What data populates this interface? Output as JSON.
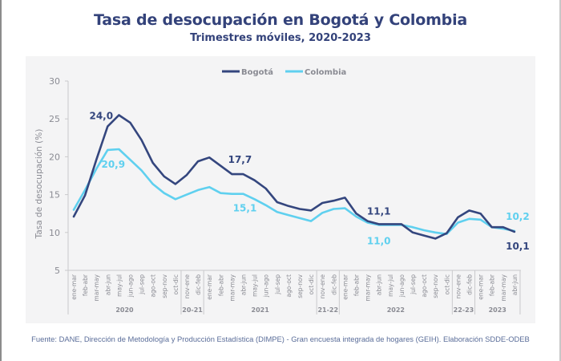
{
  "title": "Tasa de desocupación en Bogotá y Colombia",
  "subtitle": "Trimestres móviles, 2020-2023",
  "footer": "Fuente: DANE, Dirección de Metodología y Producción Estadística (DIMPE) - Gran encuesta integrada de hogares (GEIH). Elaboración SDDE-ODEB",
  "chart_data": {
    "type": "line",
    "title": "Tasa de desocupación en Bogotá y Colombia",
    "subtitle": "Trimestres móviles, 2020-2023",
    "xlabel": "",
    "ylabel": "Tasa de desocupación (%)",
    "ylim": [
      5,
      30
    ],
    "yticks": [
      5,
      10,
      15,
      20,
      25,
      30
    ],
    "grid": false,
    "legend_position": "top-center",
    "categories": [
      "ene-mar",
      "feb-abr",
      "mar-may",
      "abr-jun",
      "may-jul",
      "jun-ago",
      "jul-sep",
      "ago-oct",
      "sep-nov",
      "oct-dic",
      "nov-ene",
      "dic-feb",
      "ene-mar",
      "feb-abr",
      "mar-may",
      "abr-jun",
      "may-jul",
      "jun-ago",
      "jul-sep",
      "ago-oct",
      "sep-nov",
      "oct-dic",
      "nov-ene",
      "dic-feb",
      "ene-mar",
      "feb-abr",
      "mar-may",
      "abr-jun",
      "may-jul",
      "jun-ago",
      "jul-sep",
      "ago-oct",
      "sep-nov",
      "oct-dic",
      "nov-ene",
      "dic-feb",
      "ene-mar",
      "feb-abr",
      "mar-may",
      "abr-jun"
    ],
    "groups": [
      {
        "label": "2020",
        "count": 10
      },
      {
        "label": "20-21",
        "count": 2
      },
      {
        "label": "2021",
        "count": 10
      },
      {
        "label": "21-22",
        "count": 2
      },
      {
        "label": "2022",
        "count": 10
      },
      {
        "label": "22-23",
        "count": 2
      },
      {
        "label": "2023",
        "count": 4
      }
    ],
    "series": [
      {
        "name": "Bogotá",
        "color": "#34467e",
        "values": [
          12.1,
          14.9,
          19.6,
          24.0,
          25.5,
          24.5,
          22.2,
          19.2,
          17.4,
          16.4,
          17.6,
          19.4,
          19.9,
          18.8,
          17.7,
          17.7,
          16.9,
          15.8,
          14.0,
          13.5,
          13.1,
          12.9,
          13.9,
          14.2,
          14.6,
          12.5,
          11.5,
          11.1,
          11.1,
          11.1,
          10.0,
          9.6,
          9.2,
          9.9,
          12.0,
          12.9,
          12.5,
          10.7,
          10.7,
          10.1
        ]
      },
      {
        "name": "Colombia",
        "color": "#5fd0ef",
        "values": [
          13.0,
          15.6,
          18.4,
          20.9,
          21.0,
          19.6,
          18.2,
          16.4,
          15.2,
          14.4,
          15.0,
          15.6,
          16.0,
          15.2,
          15.1,
          15.1,
          14.4,
          13.6,
          12.7,
          12.3,
          11.9,
          11.5,
          12.6,
          13.1,
          13.2,
          12.1,
          11.3,
          11.0,
          11.0,
          11.0,
          10.7,
          10.3,
          10.0,
          9.8,
          11.3,
          11.8,
          11.7,
          10.7,
          10.5,
          10.2
        ]
      }
    ],
    "annotations": [
      {
        "series": "Bogotá",
        "index": 3,
        "text": "24,0"
      },
      {
        "series": "Colombia",
        "index": 3,
        "text": "20,9"
      },
      {
        "series": "Bogotá",
        "index": 14,
        "text": "17,7"
      },
      {
        "series": "Colombia",
        "index": 15,
        "text": "15,1"
      },
      {
        "series": "Bogotá",
        "index": 27,
        "text": "11,1"
      },
      {
        "series": "Colombia",
        "index": 27,
        "text": "11,0"
      },
      {
        "series": "Colombia",
        "index": 39,
        "text": "10,2"
      },
      {
        "series": "Bogotá",
        "index": 39,
        "text": "10,1"
      }
    ]
  }
}
